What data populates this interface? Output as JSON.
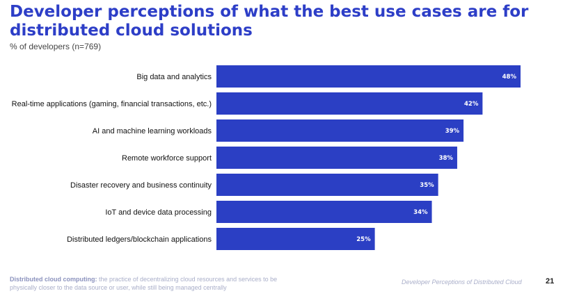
{
  "header": {
    "title": "Developer perceptions of what the best use cases are for distributed cloud solutions",
    "subtitle": "% of developers (n=769)"
  },
  "colors": {
    "accent": "#2d3ec7",
    "bar": "#2b3fc4"
  },
  "chart_data": {
    "type": "bar",
    "orientation": "horizontal",
    "categories": [
      "Big data and analytics",
      "Real-time applications (gaming, financial transactions, etc.)",
      "AI and machine learning workloads",
      "Remote workforce support",
      "Disaster recovery and business continuity",
      "IoT and device data processing",
      "Distributed ledgers/blockchain applications"
    ],
    "values": [
      48,
      42,
      39,
      38,
      35,
      34,
      25
    ],
    "value_labels": [
      "48%",
      "42%",
      "39%",
      "38%",
      "35%",
      "34%",
      "25%"
    ],
    "xlim": [
      0,
      48
    ],
    "grid": false,
    "legend": "none"
  },
  "footer": {
    "definition_term": "Distributed cloud computing:",
    "definition_text": " the practice of decentralizing cloud resources and services to be physically closer to the data source or user, while still being managed centrally",
    "source": "Developer Perceptions of Distributed Cloud",
    "page_number": "21"
  }
}
